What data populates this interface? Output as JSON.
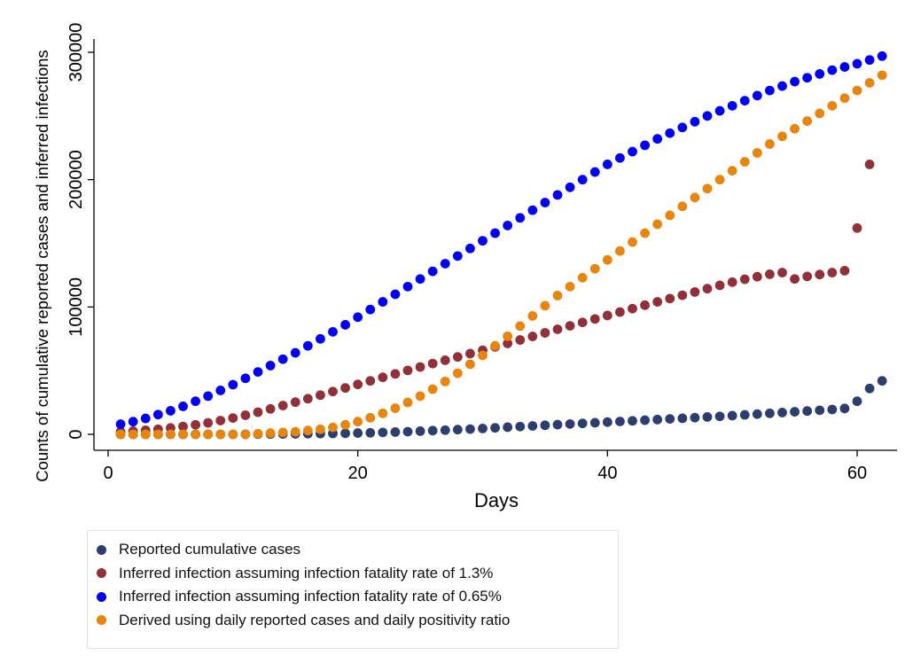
{
  "chart_data": {
    "type": "scatter",
    "xlabel": "Days",
    "ylabel": "Counts of cumulative reported cases and inferred infections",
    "xlim": [
      0,
      62
    ],
    "ylim": [
      0,
      300000
    ],
    "xticks": [
      0,
      20,
      40,
      60
    ],
    "yticks": [
      0,
      100000,
      200000,
      300000
    ],
    "xtick_labels": [
      "0",
      "20",
      "40",
      "60"
    ],
    "ytick_labels": [
      "0",
      "100000",
      "200000",
      "300000"
    ],
    "grid": false,
    "legend_position": "bottom",
    "x": [
      1,
      2,
      3,
      4,
      5,
      6,
      7,
      8,
      9,
      10,
      11,
      12,
      13,
      14,
      15,
      16,
      17,
      18,
      19,
      20,
      21,
      22,
      23,
      24,
      25,
      26,
      27,
      28,
      29,
      30,
      31,
      32,
      33,
      34,
      35,
      36,
      37,
      38,
      39,
      40,
      41,
      42,
      43,
      44,
      45,
      46,
      47,
      48,
      49,
      50,
      51,
      52,
      53,
      54,
      55,
      56,
      57,
      58,
      59,
      60,
      61,
      62
    ],
    "series": [
      {
        "name": "Reported cumulative cases",
        "color": "#2c3e6e",
        "values": [
          0,
          0,
          0,
          0,
          0,
          0,
          0,
          0,
          0,
          0,
          50,
          100,
          200,
          300,
          400,
          500,
          600,
          700,
          800,
          1000,
          1200,
          1500,
          1800,
          2100,
          2500,
          2900,
          3300,
          3700,
          4100,
          4600,
          5100,
          5600,
          6100,
          6600,
          7100,
          7600,
          8100,
          8600,
          9100,
          9600,
          10100,
          10600,
          11100,
          11600,
          12100,
          12600,
          13100,
          13600,
          14100,
          14700,
          15300,
          15900,
          16500,
          17100,
          17700,
          18300,
          18900,
          19500,
          20300,
          26000,
          36000,
          42000
        ]
      },
      {
        "name": "Inferred infection assuming infection fatality rate of 1.3%",
        "color": "#913038",
        "values": [
          2000,
          2500,
          3200,
          4000,
          5000,
          6200,
          7500,
          9000,
          10800,
          12800,
          15000,
          17400,
          20000,
          22600,
          25300,
          28000,
          30800,
          33600,
          36400,
          39200,
          42000,
          44800,
          47500,
          50200,
          52900,
          55600,
          58200,
          60800,
          63400,
          66000,
          68700,
          71400,
          74100,
          76900,
          79700,
          82500,
          85200,
          87900,
          90600,
          93300,
          96000,
          98700,
          101400,
          104000,
          106600,
          109200,
          111800,
          114400,
          117000,
          119500,
          121800,
          123800,
          125700,
          127000,
          122000,
          124000,
          125500,
          127000,
          128500,
          162000,
          212000,
          null
        ]
      },
      {
        "name": "Inferred infection assuming infection fatality rate of 0.65%",
        "color": "#0000f5",
        "values": [
          8000,
          10000,
          12500,
          15500,
          18500,
          22000,
          26000,
          30000,
          34500,
          39000,
          44000,
          49000,
          54000,
          59000,
          64000,
          69500,
          75000,
          80500,
          86000,
          92000,
          98000,
          104000,
          110000,
          116000,
          122000,
          128000,
          134000,
          140000,
          146000,
          152000,
          158000,
          164000,
          170000,
          176000,
          182000,
          188000,
          194000,
          200000,
          206000,
          212000,
          217000,
          222000,
          227000,
          232000,
          236500,
          241000,
          245500,
          250000,
          254000,
          258000,
          262000,
          266000,
          270000,
          273500,
          277000,
          280000,
          283000,
          286000,
          288500,
          291000,
          294000,
          297000
        ]
      },
      {
        "name": "Derived using daily reported cases and daily positivity ratio",
        "color": "#e8850c",
        "values": [
          0,
          0,
          0,
          0,
          0,
          0,
          0,
          0,
          0,
          0,
          0,
          500,
          1000,
          1500,
          2000,
          3000,
          4000,
          5500,
          7500,
          10000,
          13000,
          16500,
          20500,
          25000,
          30000,
          35500,
          41500,
          48000,
          55000,
          62000,
          69500,
          77000,
          85000,
          93000,
          101000,
          109000,
          116000,
          123000,
          130000,
          137000,
          144000,
          151000,
          158000,
          165000,
          172000,
          179000,
          186000,
          193000,
          200000,
          207000,
          214000,
          221000,
          228000,
          234000,
          240000,
          246000,
          252000,
          258000,
          264000,
          270000,
          276000,
          282000
        ]
      }
    ]
  }
}
